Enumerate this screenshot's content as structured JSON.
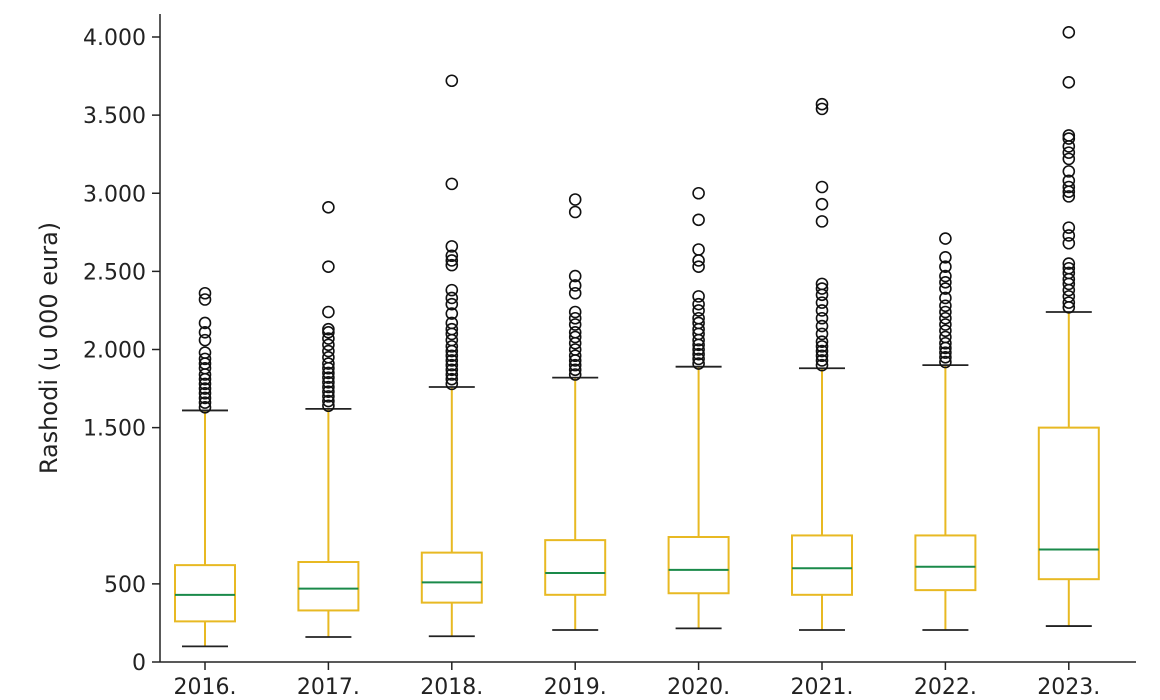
{
  "chart_data": {
    "type": "box",
    "title": "",
    "xlabel": "",
    "ylabel": "Rashodi (u 000 eura)",
    "ylim": [
      0,
      4000
    ],
    "grid": false,
    "legend": "none",
    "categories": [
      "2016.",
      "2017.",
      "2018.",
      "2019.",
      "2020.",
      "2021.",
      "2022.",
      "2023."
    ],
    "y_ticks": [
      {
        "value": 0,
        "label": "0"
      },
      {
        "value": 500,
        "label": "500"
      },
      {
        "value": 1500,
        "label": "1.500"
      },
      {
        "value": 2000,
        "label": "2.000"
      },
      {
        "value": 2500,
        "label": "2.500"
      },
      {
        "value": 3000,
        "label": "3.000"
      },
      {
        "value": 3500,
        "label": "3.500"
      },
      {
        "value": 4000,
        "label": "4.000"
      }
    ],
    "colors": {
      "box": "#e8b923",
      "median": "#1a8a4a",
      "whisker_cap": "#222222",
      "outlier": "#111111",
      "axis": "#222222"
    },
    "boxes": [
      {
        "category": "2016.",
        "whisker_low": 100,
        "q1": 260,
        "median": 430,
        "q3": 620,
        "whisker_high": 1610,
        "outliers": [
          1630,
          1660,
          1690,
          1720,
          1750,
          1780,
          1810,
          1840,
          1880,
          1910,
          1940,
          1980,
          2060,
          2110,
          2170,
          2320,
          2360
        ]
      },
      {
        "category": "2017.",
        "whisker_low": 160,
        "q1": 330,
        "median": 470,
        "q3": 640,
        "whisker_high": 1620,
        "outliers": [
          1640,
          1670,
          1700,
          1730,
          1760,
          1790,
          1820,
          1850,
          1880,
          1910,
          1950,
          1990,
          2030,
          2070,
          2110,
          2130,
          2240,
          2530,
          2910
        ]
      },
      {
        "category": "2018.",
        "whisker_low": 165,
        "q1": 380,
        "median": 510,
        "q3": 700,
        "whisker_high": 1760,
        "outliers": [
          1780,
          1810,
          1840,
          1870,
          1900,
          1930,
          1960,
          1990,
          2020,
          2060,
          2100,
          2130,
          2170,
          2230,
          2290,
          2330,
          2380,
          2540,
          2570,
          2600,
          2660,
          3060,
          3720
        ]
      },
      {
        "category": "2019.",
        "whisker_low": 205,
        "q1": 430,
        "median": 570,
        "q3": 780,
        "whisker_high": 1820,
        "outliers": [
          1840,
          1870,
          1900,
          1930,
          1960,
          2000,
          2040,
          2080,
          2110,
          2160,
          2200,
          2240,
          2360,
          2410,
          2470,
          2880,
          2960
        ]
      },
      {
        "category": "2020.",
        "whisker_low": 215,
        "q1": 440,
        "median": 590,
        "q3": 800,
        "whisker_high": 1890,
        "outliers": [
          1910,
          1940,
          1970,
          2000,
          2030,
          2060,
          2100,
          2130,
          2170,
          2200,
          2250,
          2290,
          2340,
          2530,
          2570,
          2640,
          2830,
          3000
        ]
      },
      {
        "category": "2021.",
        "whisker_low": 205,
        "q1": 430,
        "median": 600,
        "q3": 810,
        "whisker_high": 1880,
        "outliers": [
          1900,
          1930,
          1960,
          1990,
          2020,
          2050,
          2100,
          2150,
          2200,
          2250,
          2300,
          2350,
          2390,
          2420,
          2820,
          2930,
          3040,
          3540,
          3570
        ]
      },
      {
        "category": "2022.",
        "whisker_low": 205,
        "q1": 460,
        "median": 610,
        "q3": 810,
        "whisker_high": 1900,
        "outliers": [
          1920,
          1950,
          1980,
          2010,
          2040,
          2080,
          2120,
          2160,
          2200,
          2240,
          2280,
          2330,
          2390,
          2430,
          2470,
          2530,
          2590,
          2710
        ]
      },
      {
        "category": "2023.",
        "whisker_low": 230,
        "q1": 530,
        "median": 720,
        "q3": 1500,
        "whisker_high": 2240,
        "outliers": [
          2270,
          2300,
          2340,
          2380,
          2420,
          2450,
          2490,
          2520,
          2550,
          2680,
          2730,
          2780,
          2980,
          3010,
          3040,
          3080,
          3140,
          3220,
          3260,
          3300,
          3350,
          3370,
          3710,
          4030
        ]
      }
    ]
  }
}
